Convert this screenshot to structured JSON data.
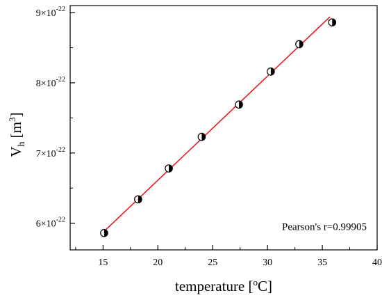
{
  "chart_data": {
    "type": "scatter",
    "xlabel": {
      "main": "temperature [",
      "sup": "o",
      "tail": "C]"
    },
    "ylabel": {
      "main": "V",
      "sub": "h",
      "mid": " [m",
      "sup": "3",
      "tail": "]"
    },
    "xlim": [
      12,
      40
    ],
    "ylim": [
      5.62e-22,
      9.1e-22
    ],
    "x_ticks": [
      {
        "value": 15,
        "label": "15"
      },
      {
        "value": 20,
        "label": "20"
      },
      {
        "value": 25,
        "label": "25"
      },
      {
        "value": 30,
        "label": "30"
      },
      {
        "value": 35,
        "label": "35"
      },
      {
        "value": 40,
        "label": "40"
      }
    ],
    "y_ticks": [
      {
        "value": 6e-22,
        "mantissa": "6",
        "base": "×10",
        "exp": "-22"
      },
      {
        "value": 7e-22,
        "mantissa": "7",
        "base": "×10",
        "exp": "-22"
      },
      {
        "value": 8e-22,
        "mantissa": "8",
        "base": "×10",
        "exp": "-22"
      },
      {
        "value": 9e-22,
        "mantissa": "9",
        "base": "×10",
        "exp": "-22"
      }
    ],
    "points": [
      {
        "x": 15.1,
        "y": 5.86e-22
      },
      {
        "x": 18.2,
        "y": 6.34e-22
      },
      {
        "x": 21.0,
        "y": 6.78e-22
      },
      {
        "x": 24.0,
        "y": 7.23e-22
      },
      {
        "x": 27.4,
        "y": 7.69e-22
      },
      {
        "x": 30.3,
        "y": 8.16e-22
      },
      {
        "x": 32.9,
        "y": 8.55e-22
      },
      {
        "x": 35.9,
        "y": 8.86e-22
      }
    ],
    "fit_line": {
      "x": [
        15.0,
        35.7
      ],
      "y": [
        5.87e-22,
        8.94e-22
      ],
      "color": "#e8191f"
    },
    "annotation": "Pearson's r=0.99905",
    "grid": false,
    "marker": "half-filled circle"
  }
}
